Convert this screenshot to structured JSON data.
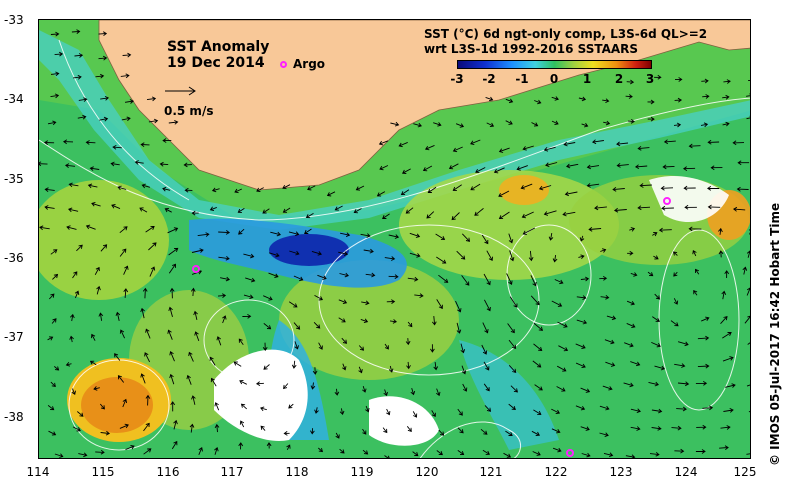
{
  "map": {
    "title": "SST Anomaly",
    "date": "19 Dec 2014",
    "argo_label": "Argo",
    "scale_label": "0.5 m/s",
    "colorbar": {
      "title_line1": "SST (°C) 6d ngt-only comp, L3S-6d QL>=2",
      "title_line2": "wrt L3S-1d 1992-2016 SSTAARS",
      "ticks": [
        "-3",
        "-2",
        "-1",
        "0",
        "1",
        "2",
        "3"
      ]
    },
    "side_credit": "© IMOS 05-Jul-2017 16:42 Hobart Time",
    "lat_labels": [
      "-33",
      "-34",
      "-35",
      "-36",
      "-37",
      "-38"
    ],
    "lon_labels": [
      "114",
      "115",
      "116",
      "117",
      "118",
      "119",
      "120",
      "121",
      "122",
      "123",
      "124",
      "125"
    ],
    "colors": {
      "land": "#f8c898",
      "argo": "#ff20ff",
      "no_data": "#ffffff"
    }
  }
}
